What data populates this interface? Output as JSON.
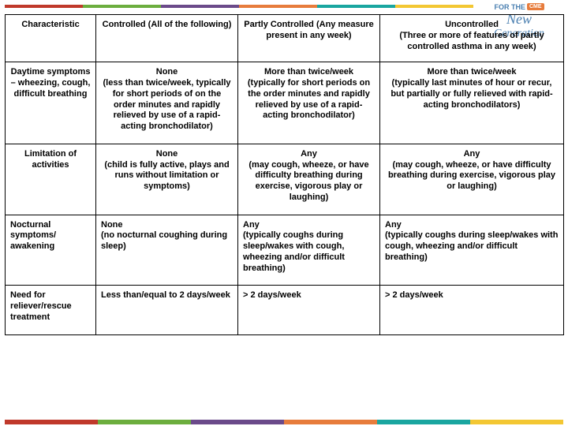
{
  "brand_colors": {
    "red": "#c0392b",
    "green": "#6cae3e",
    "purple": "#6b4a8a",
    "orange": "#e77c3c",
    "teal": "#1aa6a0",
    "yellow": "#f3c733"
  },
  "logo": {
    "tagline": "FOR THE",
    "line1": "New",
    "line2": "Generation",
    "badge": "CME"
  },
  "table": {
    "headers": [
      "Characteristic",
      "Controlled (All of the following)",
      "Partly Controlled (Any measure present in any week)",
      "Uncontrolled\n(Three or more of features of partly controlled  asthma in any week)"
    ],
    "rows": [
      {
        "align": "center",
        "cells": [
          "Daytime symptoms – wheezing, cough, difficult breathing",
          "None\n(less than twice/week, typically for short periods of on the order minutes and rapidly relieved by use of a rapid-acting bronchodilator)",
          "More than twice/week\n(typically for short periods on the order minutes and rapidly relieved by use of a rapid-acting bronchodilator)",
          "More than twice/week\n(typically last minutes of hour or recur, but partially or fully relieved with rapid-acting bronchodilators)"
        ]
      },
      {
        "align": "center",
        "cells": [
          "Limitation of activities",
          "None\n(child is fully active, plays and runs without limitation or symptoms)",
          "Any\n(may cough, wheeze, or have difficulty breathing during exercise, vigorous play or laughing)",
          "Any\n(may cough, wheeze, or have difficulty breathing during exercise, vigorous play or laughing)"
        ]
      },
      {
        "align": "left",
        "cells": [
          "Nocturnal symptoms/\nawakening",
          "None\n(no nocturnal coughing during sleep)",
          "Any\n(typically coughs during sleep/wakes with cough, wheezing and/or difficult breathing)",
          "Any\n(typically coughs during sleep/wakes with cough, wheezing and/or difficult breathing)"
        ]
      },
      {
        "align": "left",
        "cells": [
          "Need for reliever/rescue treatment",
          "Less than/equal to 2 days/week",
          "> 2 days/week",
          "> 2 days/week"
        ]
      }
    ]
  }
}
